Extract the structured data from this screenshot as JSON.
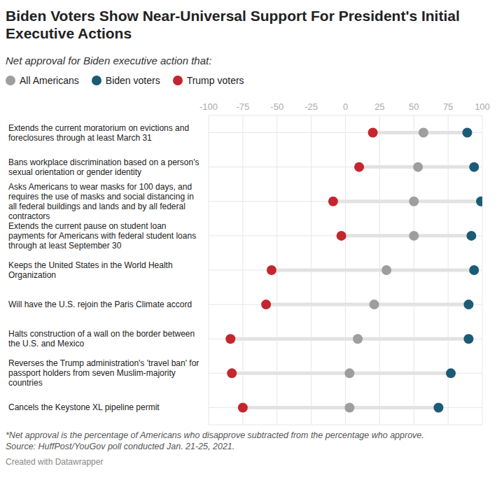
{
  "chart_data": {
    "type": "dot",
    "title": "Biden Voters Show Near-Universal Support For President's Initial Executive Actions",
    "subtitle": "Net approval for Biden executive action that:",
    "categories": [
      "Extends the current moratorium on evictions and foreclosures through at least March 31",
      "Bans workplace discrimination based on a person's sexual orientation or gender identity",
      "Asks Americans to wear masks for 100 days, and requires the use of masks and social distancing in all federal buildings and lands and by all federal contractors",
      "Extends the current pause on student loan payments for Americans with federal student loans through at least September 30",
      "Keeps the United States in the World Health Organization",
      "Will have the U.S. rejoin the Paris Climate accord",
      "Halts construction of a wall on the border between the U.S. and Mexico",
      "Reverses the Trump administration's 'travel ban' for passport holders from seven Muslim-majority countries",
      "Cancels the Keystone XL pipeline permit"
    ],
    "series": [
      {
        "name": "All Americans",
        "color": "#9e9e9e",
        "values": [
          57,
          53,
          50,
          50,
          30,
          21,
          9,
          3,
          3
        ]
      },
      {
        "name": "Biden voters",
        "color": "#1c5b76",
        "values": [
          89,
          94,
          99,
          92,
          94,
          90,
          90,
          77,
          68
        ]
      },
      {
        "name": "Trump voters",
        "color": "#c4262e",
        "values": [
          20,
          10,
          -9,
          -3,
          -54,
          -58,
          -84,
          -83,
          -75
        ]
      }
    ],
    "orientation": "horizontal",
    "xlim": [
      -100,
      100
    ],
    "xticks": [
      -100,
      -75,
      -50,
      -25,
      0,
      25,
      50,
      75,
      100
    ],
    "grid": true,
    "legend": "top",
    "note": "*Net approval is the percentage of Americans who disapprove subtracted from the percentage who approve.",
    "source": "Source: HuffPost/YouGov poll conducted Jan. 21-25, 2021.",
    "credit": "Created with Datawrapper"
  }
}
